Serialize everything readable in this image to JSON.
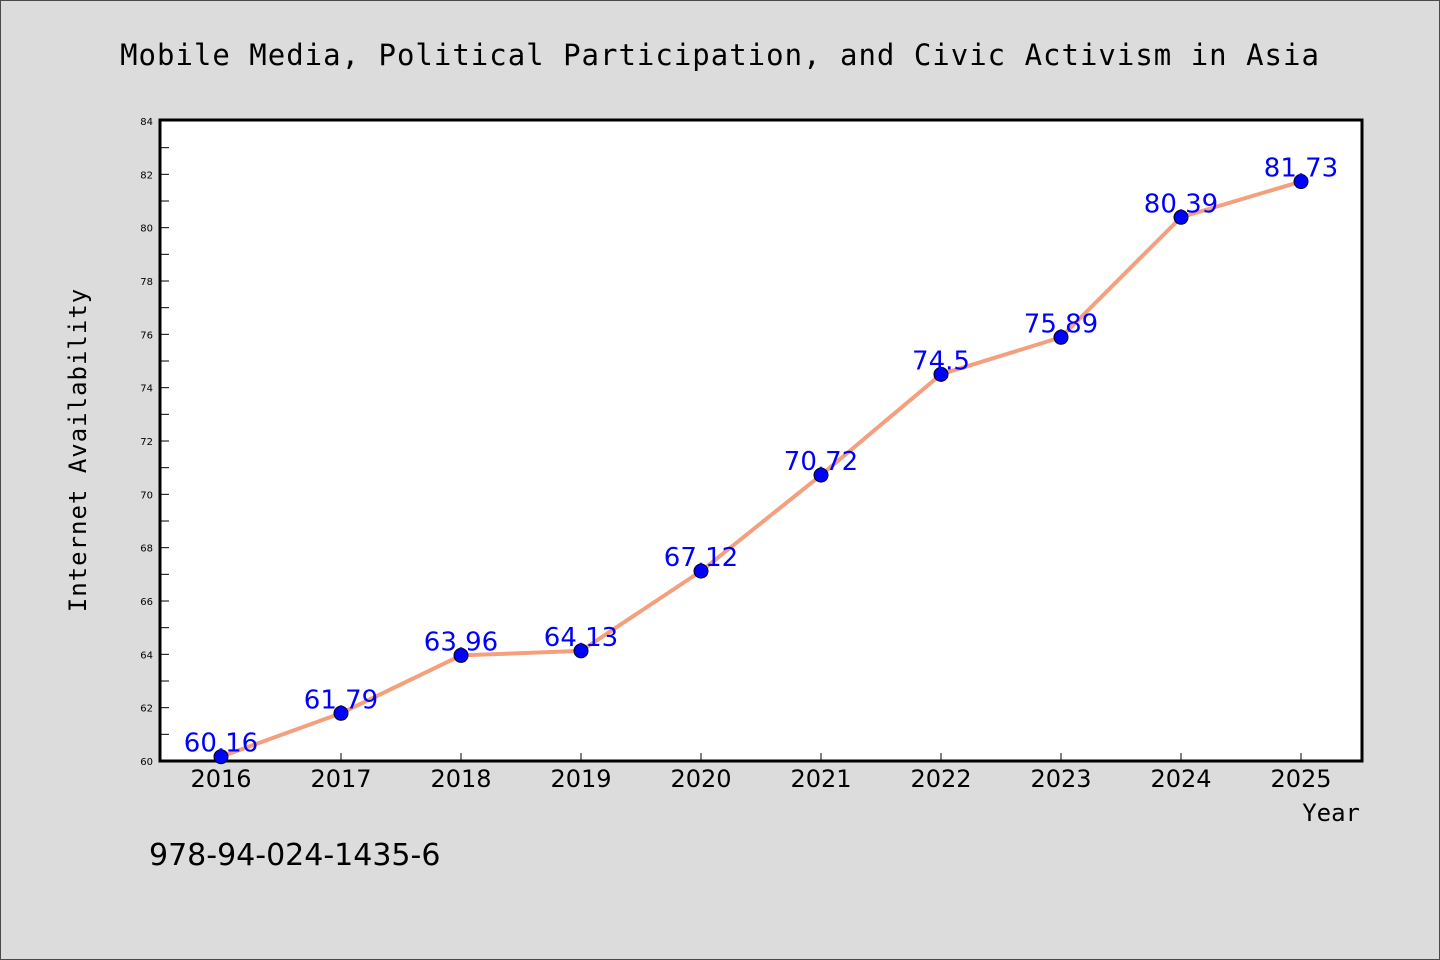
{
  "chart_data": {
    "type": "line",
    "title": "Mobile Media, Political Participation, and Civic Activism in Asia",
    "xlabel": "Year",
    "ylabel": "Internet Availability",
    "categories": [
      "2016",
      "2017",
      "2018",
      "2019",
      "2020",
      "2021",
      "2022",
      "2023",
      "2024",
      "2025"
    ],
    "series": [
      {
        "values": [
          60.16,
          61.79,
          63.96,
          64.13,
          67.12,
          70.72,
          74.5,
          75.89,
          80.39,
          81.73
        ],
        "labels": [
          "60.16",
          "61.79",
          "63.96",
          "64.13",
          "67.12",
          "70.72",
          "74.5",
          "75.89",
          "80.39",
          "81.73"
        ],
        "line_color": "#f4a07e",
        "marker_color": "#0000ff"
      }
    ],
    "ylim": [
      60,
      84
    ],
    "yticks": [
      "60",
      "62",
      "64",
      "66",
      "68",
      "70",
      "72",
      "74",
      "76",
      "78",
      "80",
      "82",
      "84"
    ],
    "grid": false,
    "legend": "none"
  },
  "footer": {
    "isbn": "978-94-024-1435-6"
  },
  "colors": {
    "background": "#dcdcdc",
    "plot_background": "#ffffff",
    "line": "#f4a07e",
    "marker": "#0000ff",
    "data_label": "#0000ff"
  }
}
